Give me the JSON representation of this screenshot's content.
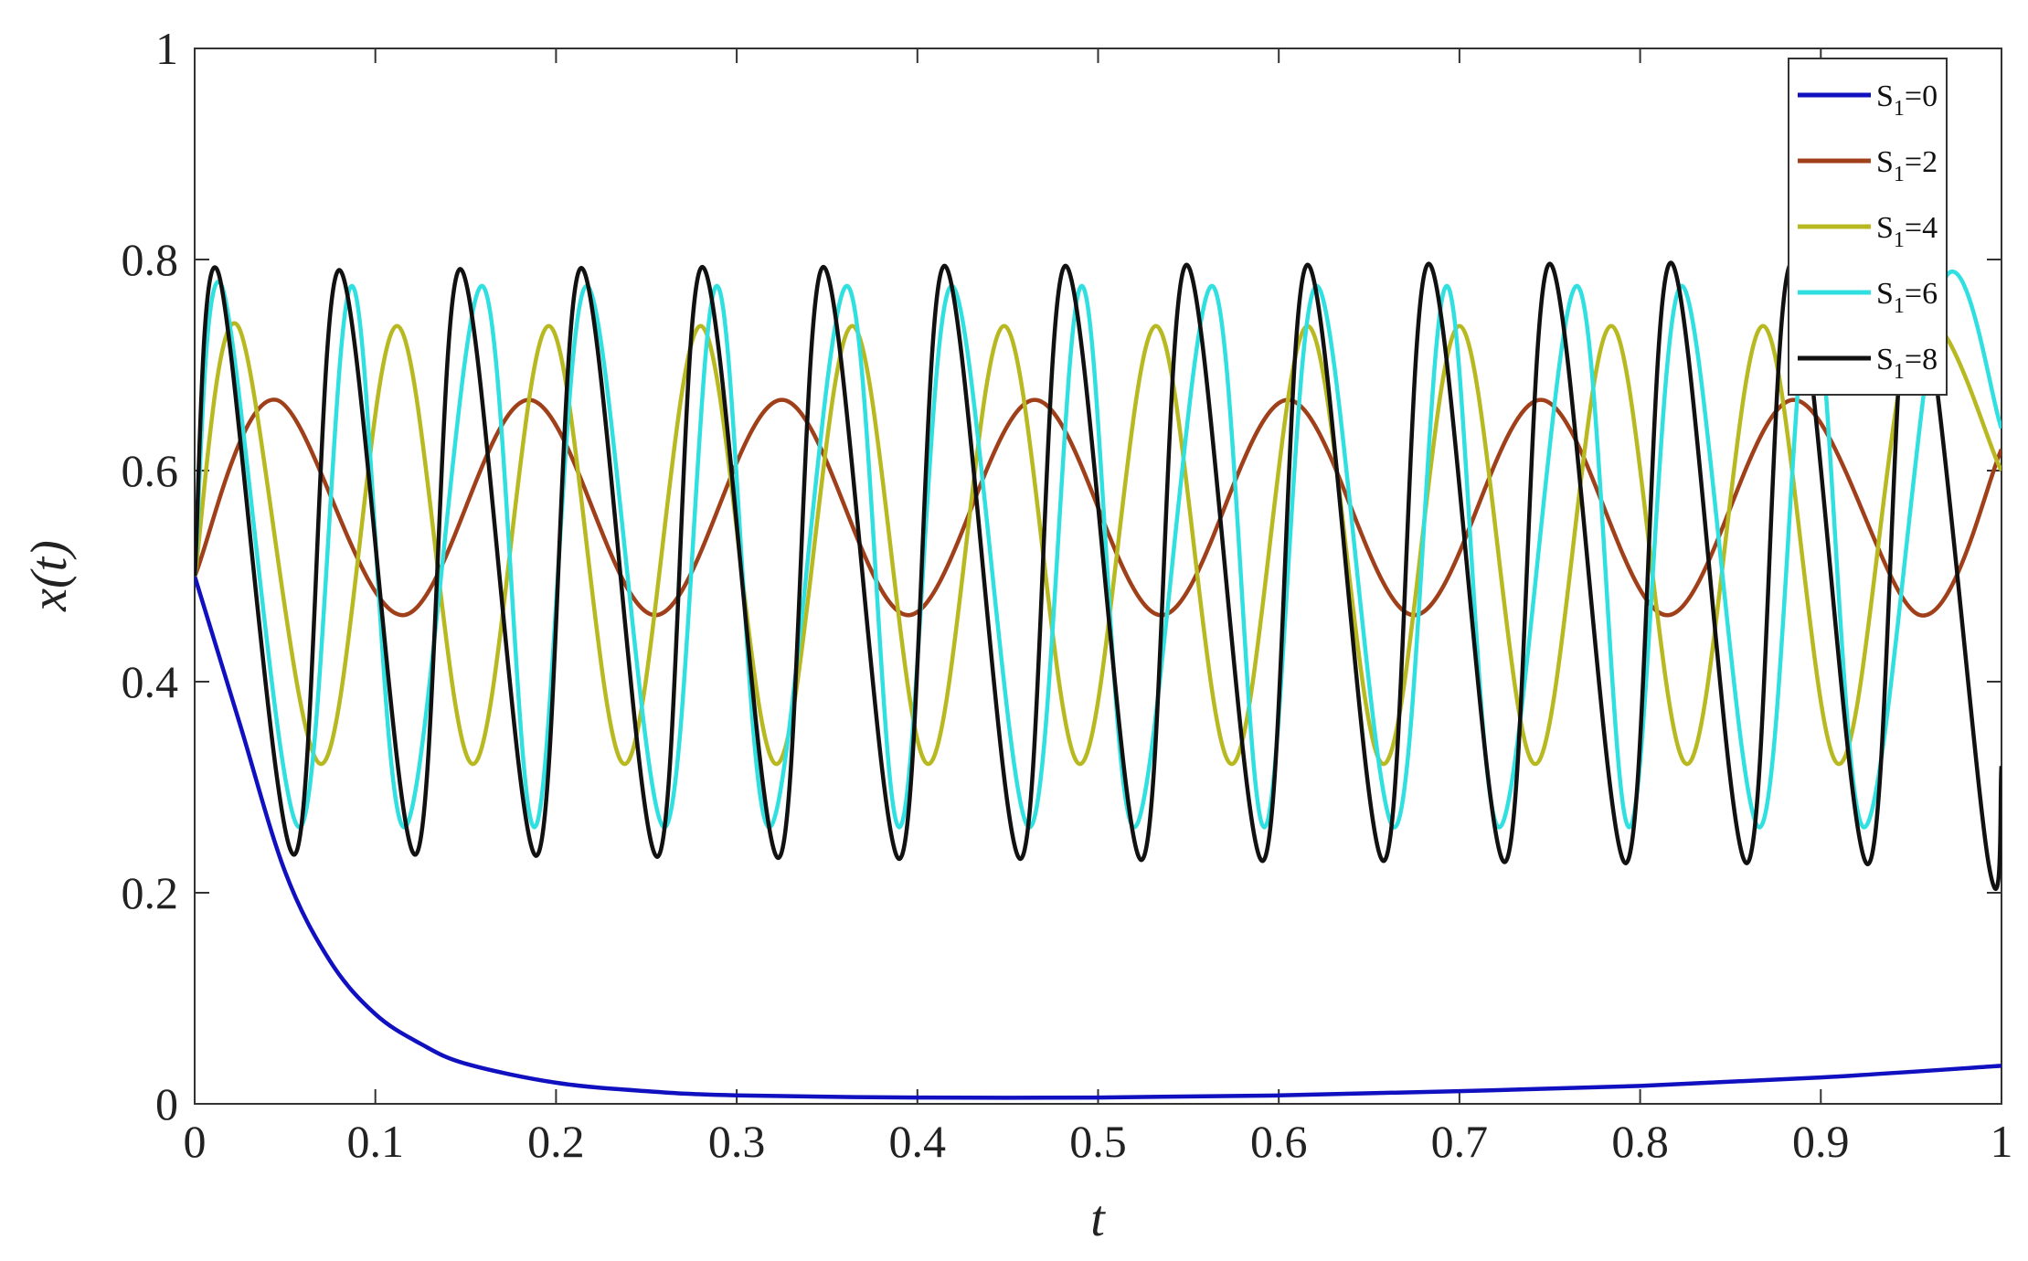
{
  "chart_data": {
    "type": "line",
    "title": "",
    "xlabel": "t",
    "ylabel": "x(t)",
    "xlim": [
      0,
      1
    ],
    "ylim": [
      0,
      1
    ],
    "xticks": [
      0,
      0.1,
      0.2,
      0.3,
      0.4,
      0.5,
      0.6,
      0.7,
      0.8,
      0.9,
      1
    ],
    "xtick_labels": [
      "0",
      "0.1",
      "0.2",
      "0.3",
      "0.4",
      "0.5",
      "0.6",
      "0.7",
      "0.8",
      "0.9",
      "1"
    ],
    "yticks": [
      0,
      0.2,
      0.4,
      0.6,
      0.8,
      1
    ],
    "ytick_labels": [
      "0",
      "0.2",
      "0.4",
      "0.6",
      "0.8",
      "1"
    ],
    "grid": false,
    "legend_position": "top-right",
    "series": [
      {
        "name": "S1=0",
        "name_main": "S",
        "name_sub": "1",
        "name_rest": "=0",
        "color": "#1010c0",
        "x": [
          0,
          0.025,
          0.05,
          0.075,
          0.1,
          0.125,
          0.15,
          0.2,
          0.25,
          0.3,
          0.4,
          0.5,
          0.6,
          0.7,
          0.8,
          0.9,
          1.0
        ],
        "y": [
          0.5,
          0.36,
          0.22,
          0.135,
          0.085,
          0.057,
          0.038,
          0.02,
          0.012,
          0.008,
          0.006,
          0.006,
          0.008,
          0.012,
          0.017,
          0.025,
          0.036
        ]
      },
      {
        "name": "S1=2",
        "name_main": "S",
        "name_sub": "1",
        "name_rest": "=2",
        "color": "#a0401a",
        "x": [
          0,
          0.045,
          0.115,
          0.185,
          0.255,
          0.325,
          0.395,
          0.465,
          0.535,
          0.605,
          0.675,
          0.745,
          0.815,
          0.885,
          0.955,
          1.0
        ],
        "y": [
          0.5,
          0.667,
          0.463,
          0.667,
          0.463,
          0.667,
          0.463,
          0.667,
          0.463,
          0.667,
          0.463,
          0.667,
          0.463,
          0.667,
          0.463,
          0.62
        ]
      },
      {
        "name": "S1=4",
        "name_main": "S",
        "name_sub": "1",
        "name_rest": "=4",
        "color": "#b8b820",
        "x": [
          0,
          0.024,
          0.07,
          0.112,
          0.154,
          0.196,
          0.238,
          0.28,
          0.322,
          0.364,
          0.406,
          0.448,
          0.49,
          0.532,
          0.574,
          0.616,
          0.658,
          0.7,
          0.742,
          0.784,
          0.826,
          0.868,
          0.91,
          0.952,
          1.0
        ],
        "y": [
          0.5,
          0.737,
          0.322,
          0.737,
          0.322,
          0.737,
          0.322,
          0.737,
          0.322,
          0.737,
          0.322,
          0.737,
          0.322,
          0.737,
          0.322,
          0.737,
          0.322,
          0.737,
          0.322,
          0.737,
          0.322,
          0.737,
          0.322,
          0.737,
          0.6
        ]
      },
      {
        "name": "S1=6",
        "name_main": "S",
        "name_sub": "1",
        "name_rest": "=6",
        "color": "#30e0e0",
        "x": [
          0,
          0.015,
          0.058,
          0.087,
          0.116,
          0.159,
          0.188,
          0.217,
          0.26,
          0.289,
          0.318,
          0.361,
          0.39,
          0.419,
          0.462,
          0.491,
          0.52,
          0.563,
          0.592,
          0.621,
          0.664,
          0.693,
          0.722,
          0.765,
          0.794,
          0.823,
          0.866,
          0.895,
          0.924,
          0.967,
          1.0
        ],
        "y": [
          0.5,
          0.775,
          0.262,
          0.775,
          0.262,
          0.775,
          0.262,
          0.775,
          0.262,
          0.775,
          0.262,
          0.775,
          0.262,
          0.775,
          0.262,
          0.775,
          0.262,
          0.775,
          0.262,
          0.775,
          0.262,
          0.775,
          0.262,
          0.775,
          0.262,
          0.775,
          0.262,
          0.775,
          0.262,
          0.775,
          0.64
        ]
      },
      {
        "name": "S1=8",
        "name_main": "S",
        "name_sub": "1",
        "name_rest": "=8",
        "color": "#111111",
        "x": [
          0,
          0.013,
          0.055,
          0.08,
          0.122,
          0.147,
          0.189,
          0.214,
          0.256,
          0.281,
          0.323,
          0.348,
          0.39,
          0.415,
          0.457,
          0.482,
          0.524,
          0.549,
          0.591,
          0.616,
          0.658,
          0.683,
          0.725,
          0.75,
          0.792,
          0.817,
          0.859,
          0.884,
          0.926,
          0.951,
          0.993,
          1.0
        ],
        "y": [
          0.5,
          0.788,
          0.236,
          0.79,
          0.236,
          0.791,
          0.235,
          0.792,
          0.234,
          0.793,
          0.233,
          0.793,
          0.232,
          0.794,
          0.232,
          0.794,
          0.231,
          0.795,
          0.23,
          0.795,
          0.23,
          0.796,
          0.229,
          0.796,
          0.228,
          0.797,
          0.228,
          0.797,
          0.227,
          0.798,
          0.226,
          0.32
        ]
      }
    ]
  }
}
